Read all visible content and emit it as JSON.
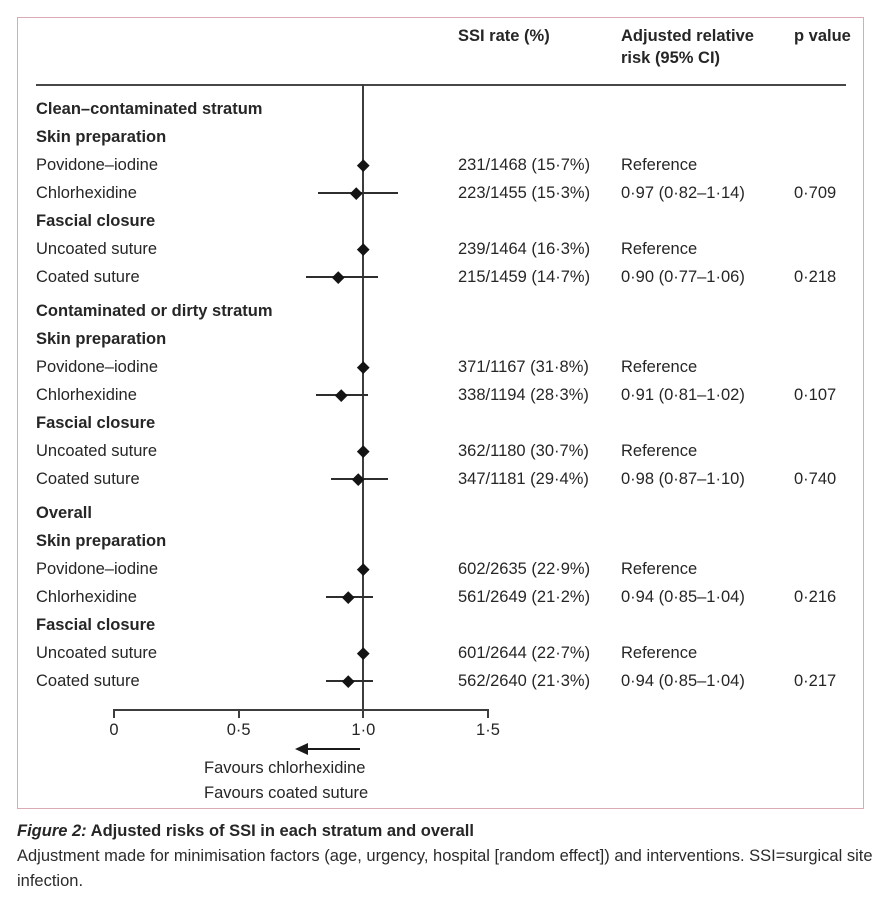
{
  "table": {
    "columns": [
      "SSI rate (%)",
      "Adjusted relative risk (95% CI)",
      "p value"
    ]
  },
  "chart_data": {
    "type": "forest",
    "xlabel": "",
    "ylabel": "",
    "axis": {
      "range": [
        0,
        1.5
      ],
      "ticks": [
        0,
        0.5,
        1.0,
        1.5
      ],
      "tick_labels": [
        "0",
        "0·5",
        "1·0",
        "1·5"
      ],
      "reference_line": 1.0
    },
    "arrow": {
      "direction": "left"
    },
    "arrow_labels": [
      "Favours chlorhexidine",
      "Favours coated suture"
    ],
    "rows": [
      {
        "kind": "group",
        "label": "Clean–contaminated stratum"
      },
      {
        "kind": "section",
        "label": "Skin preparation"
      },
      {
        "kind": "data",
        "label": "Povidone–iodine",
        "ssi": "231/1468 (15·7%)",
        "rr": 1.0,
        "arr": "Reference",
        "p": ""
      },
      {
        "kind": "data",
        "label": "Chlorhexidine",
        "ssi": "223/1455 (15·3%)",
        "rr": 0.97,
        "lo": 0.82,
        "hi": 1.14,
        "arr": "0·97 (0·82–1·14)",
        "p": "0·709"
      },
      {
        "kind": "section",
        "label": "Fascial closure"
      },
      {
        "kind": "data",
        "label": "Uncoated suture",
        "ssi": "239/1464 (16·3%)",
        "rr": 1.0,
        "arr": "Reference",
        "p": ""
      },
      {
        "kind": "data",
        "label": "Coated suture",
        "ssi": "215/1459 (14·7%)",
        "rr": 0.9,
        "lo": 0.77,
        "hi": 1.06,
        "arr": "0·90 (0·77–1·06)",
        "p": "0·218"
      },
      {
        "kind": "group",
        "label": "Contaminated or dirty stratum"
      },
      {
        "kind": "section",
        "label": "Skin preparation"
      },
      {
        "kind": "data",
        "label": "Povidone–iodine",
        "ssi": "371/1167 (31·8%)",
        "rr": 1.0,
        "arr": "Reference",
        "p": ""
      },
      {
        "kind": "data",
        "label": "Chlorhexidine",
        "ssi": "338/1194 (28·3%)",
        "rr": 0.91,
        "lo": 0.81,
        "hi": 1.02,
        "arr": "0·91 (0·81–1·02)",
        "p": "0·107"
      },
      {
        "kind": "section",
        "label": "Fascial closure"
      },
      {
        "kind": "data",
        "label": "Uncoated suture",
        "ssi": "362/1180 (30·7%)",
        "rr": 1.0,
        "arr": "Reference",
        "p": ""
      },
      {
        "kind": "data",
        "label": "Coated suture",
        "ssi": "347/1181 (29·4%)",
        "rr": 0.98,
        "lo": 0.87,
        "hi": 1.1,
        "arr": "0·98 (0·87–1·10)",
        "p": "0·740"
      },
      {
        "kind": "group",
        "label": "Overall"
      },
      {
        "kind": "section",
        "label": "Skin preparation"
      },
      {
        "kind": "data",
        "label": "Povidone–iodine",
        "ssi": "602/2635 (22·9%)",
        "rr": 1.0,
        "arr": "Reference",
        "p": ""
      },
      {
        "kind": "data",
        "label": "Chlorhexidine",
        "ssi": "561/2649 (21·2%)",
        "rr": 0.94,
        "lo": 0.85,
        "hi": 1.04,
        "arr": "0·94 (0·85–1·04)",
        "p": "0·216"
      },
      {
        "kind": "section",
        "label": "Fascial closure"
      },
      {
        "kind": "data",
        "label": "Uncoated suture",
        "ssi": "601/2644 (22·7%)",
        "rr": 1.0,
        "arr": "Reference",
        "p": ""
      },
      {
        "kind": "data",
        "label": "Coated suture",
        "ssi": "562/2640 (21·3%)",
        "rr": 0.94,
        "lo": 0.85,
        "hi": 1.04,
        "arr": "0·94 (0·85–1·04)",
        "p": "0·217"
      }
    ]
  },
  "caption": {
    "figure_label": "Figure 2:",
    "title": " Adjusted risks of SSI in each stratum and overall",
    "note": "Adjustment made for minimisation factors (age, urgency, hospital [random effect]) and interventions. SSI=surgical site infection."
  }
}
